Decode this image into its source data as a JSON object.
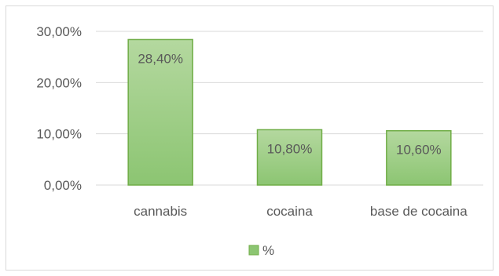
{
  "chart_data": {
    "type": "bar",
    "categories": [
      "cannabis",
      "cocaina",
      "base de cocaina"
    ],
    "series": [
      {
        "name": "%",
        "values": [
          28.4,
          10.8,
          10.6
        ]
      }
    ],
    "data_labels": [
      "28,40%",
      "10,80%",
      "10,60%"
    ],
    "y_ticks": [
      "0,00%",
      "10,00%",
      "20,00%",
      "30,00%"
    ],
    "ylim": [
      0,
      30
    ],
    "title": "",
    "xlabel": "",
    "ylabel": "",
    "grid": true,
    "legend_position": "bottom",
    "colors": {
      "bar_fill_top": "#b4d89f",
      "bar_fill_bottom": "#8cc572",
      "bar_stroke": "#70ad47",
      "gridline": "#d9d9d9",
      "text": "#595959"
    }
  }
}
